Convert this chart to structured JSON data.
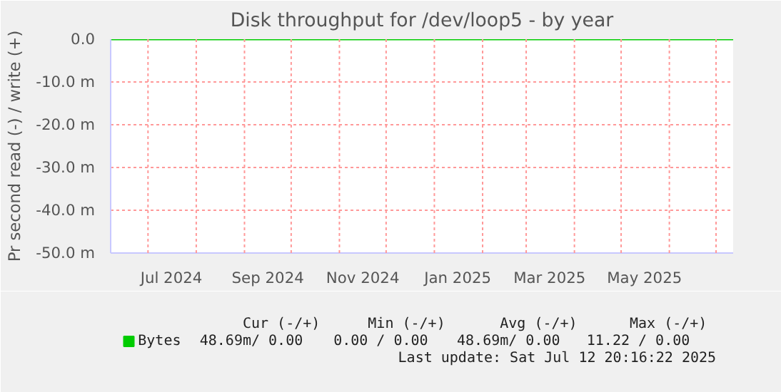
{
  "chart_data": {
    "type": "line",
    "title": "Disk throughput for /dev/loop5 - by year",
    "ylabel": "Pr second read (-) / write (+)",
    "x": [
      "2024-06-07",
      "2025-07-12"
    ],
    "series": [
      {
        "name": "Bytes",
        "color": "#00cc00",
        "values": [
          0,
          0
        ]
      }
    ],
    "xlim": [
      "2024-06-07",
      "2025-07-12"
    ],
    "xticks": [
      {
        "value": "2024-07-01",
        "label": null
      },
      {
        "value": "2024-07-16",
        "label": "Jul 2024"
      },
      {
        "value": "2024-08-01",
        "label": null
      },
      {
        "value": "2024-09-01",
        "label": null
      },
      {
        "value": "2024-09-16",
        "label": "Sep 2024"
      },
      {
        "value": "2024-10-01",
        "label": null
      },
      {
        "value": "2024-11-01",
        "label": null
      },
      {
        "value": "2024-11-16",
        "label": "Nov 2024"
      },
      {
        "value": "2024-12-01",
        "label": null
      },
      {
        "value": "2025-01-01",
        "label": null
      },
      {
        "value": "2025-01-16",
        "label": "Jan 2025"
      },
      {
        "value": "2025-02-01",
        "label": null
      },
      {
        "value": "2025-03-01",
        "label": null
      },
      {
        "value": "2025-03-16",
        "label": "Mar 2025"
      },
      {
        "value": "2025-04-01",
        "label": null
      },
      {
        "value": "2025-05-01",
        "label": null
      },
      {
        "value": "2025-05-16",
        "label": "May 2025"
      },
      {
        "value": "2025-06-01",
        "label": null
      },
      {
        "value": "2025-07-01",
        "label": null
      }
    ],
    "ylim": [
      -50,
      0
    ],
    "yticks": [
      {
        "value": 0,
        "label": "0.0"
      },
      {
        "value": -10,
        "label": "-10.0 m"
      },
      {
        "value": -20,
        "label": "-20.0 m"
      },
      {
        "value": -30,
        "label": "-30.0 m"
      },
      {
        "value": -40,
        "label": "-40.0 m"
      },
      {
        "value": -50,
        "label": "-50.0 m"
      }
    ],
    "grid": true,
    "legend": "bottom left",
    "annotations": [
      "Cur (-/+)",
      "Min (-/+)",
      "Avg (-/+)",
      "Max (-/+)",
      "48.69m/   0.00",
      "0.00 /   0.00",
      "48.69m/   0.00",
      "11.22 /   0.00",
      "Last update: Sat Jul 12 20:16:22 2025"
    ]
  }
}
